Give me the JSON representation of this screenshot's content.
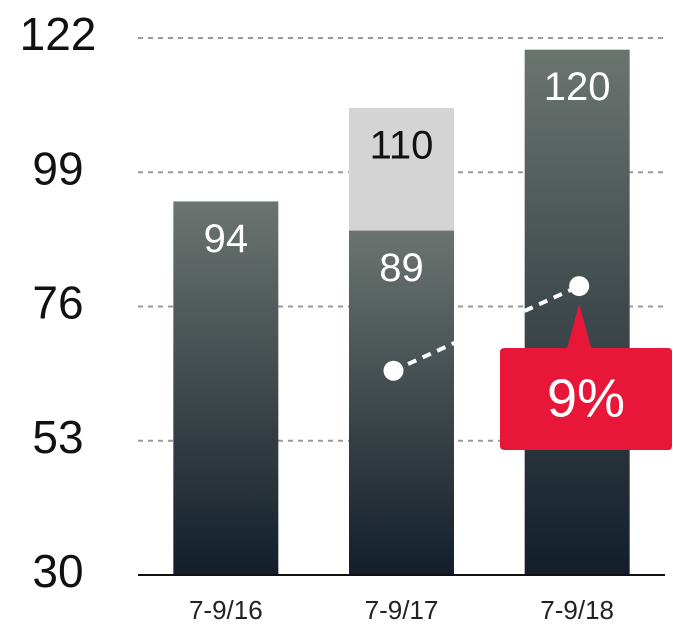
{
  "chart_data": {
    "type": "bar",
    "categories": [
      "7-9/16",
      "7-9/17",
      "7-9/18"
    ],
    "series": [
      {
        "color": "#d4d4d4",
        "values": [
          null,
          110,
          null
        ],
        "label_color": "#111111"
      },
      {
        "color": "#2e3a40",
        "values": [
          94,
          89,
          120
        ],
        "label_color": "#ffffff"
      }
    ],
    "line": {
      "color": "#ffffff",
      "values": [
        null,
        65,
        79.5
      ]
    },
    "annotation": "9%",
    "annotation_color": "#e8173a",
    "ylim": [
      30,
      122
    ],
    "yticks": [
      30,
      53,
      76,
      99,
      122
    ],
    "grid": true
  }
}
